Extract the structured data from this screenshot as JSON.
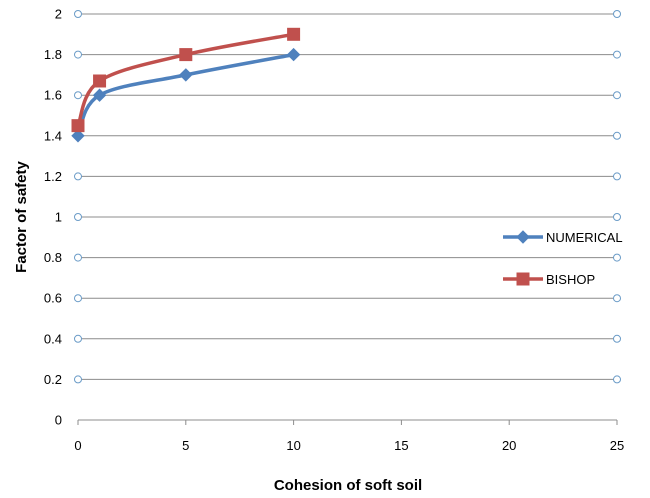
{
  "chart_data": {
    "type": "line",
    "title": "",
    "xlabel": "Cohesion of soft soil",
    "ylabel": "Factor of safety",
    "xlim": [
      0,
      25
    ],
    "ylim": [
      0,
      2
    ],
    "xticks": [
      "0",
      "5",
      "10",
      "15",
      "20",
      "25"
    ],
    "yticks": [
      "0",
      "0.2",
      "0.4",
      "0.6",
      "0.8",
      "1",
      "1.2",
      "1.4",
      "1.6",
      "1.8",
      "2"
    ],
    "grid": true,
    "legend_position": "right",
    "series": [
      {
        "name": "NUMERICAL",
        "marker": "diamond",
        "color": "#4f81bd",
        "x": [
          0,
          1,
          5,
          10
        ],
        "y": [
          1.4,
          1.6,
          1.7,
          1.8
        ]
      },
      {
        "name": "BISHOP",
        "marker": "square",
        "color": "#c0504d",
        "x": [
          0,
          1,
          5,
          10
        ],
        "y": [
          1.45,
          1.67,
          1.8,
          1.9
        ]
      }
    ]
  }
}
